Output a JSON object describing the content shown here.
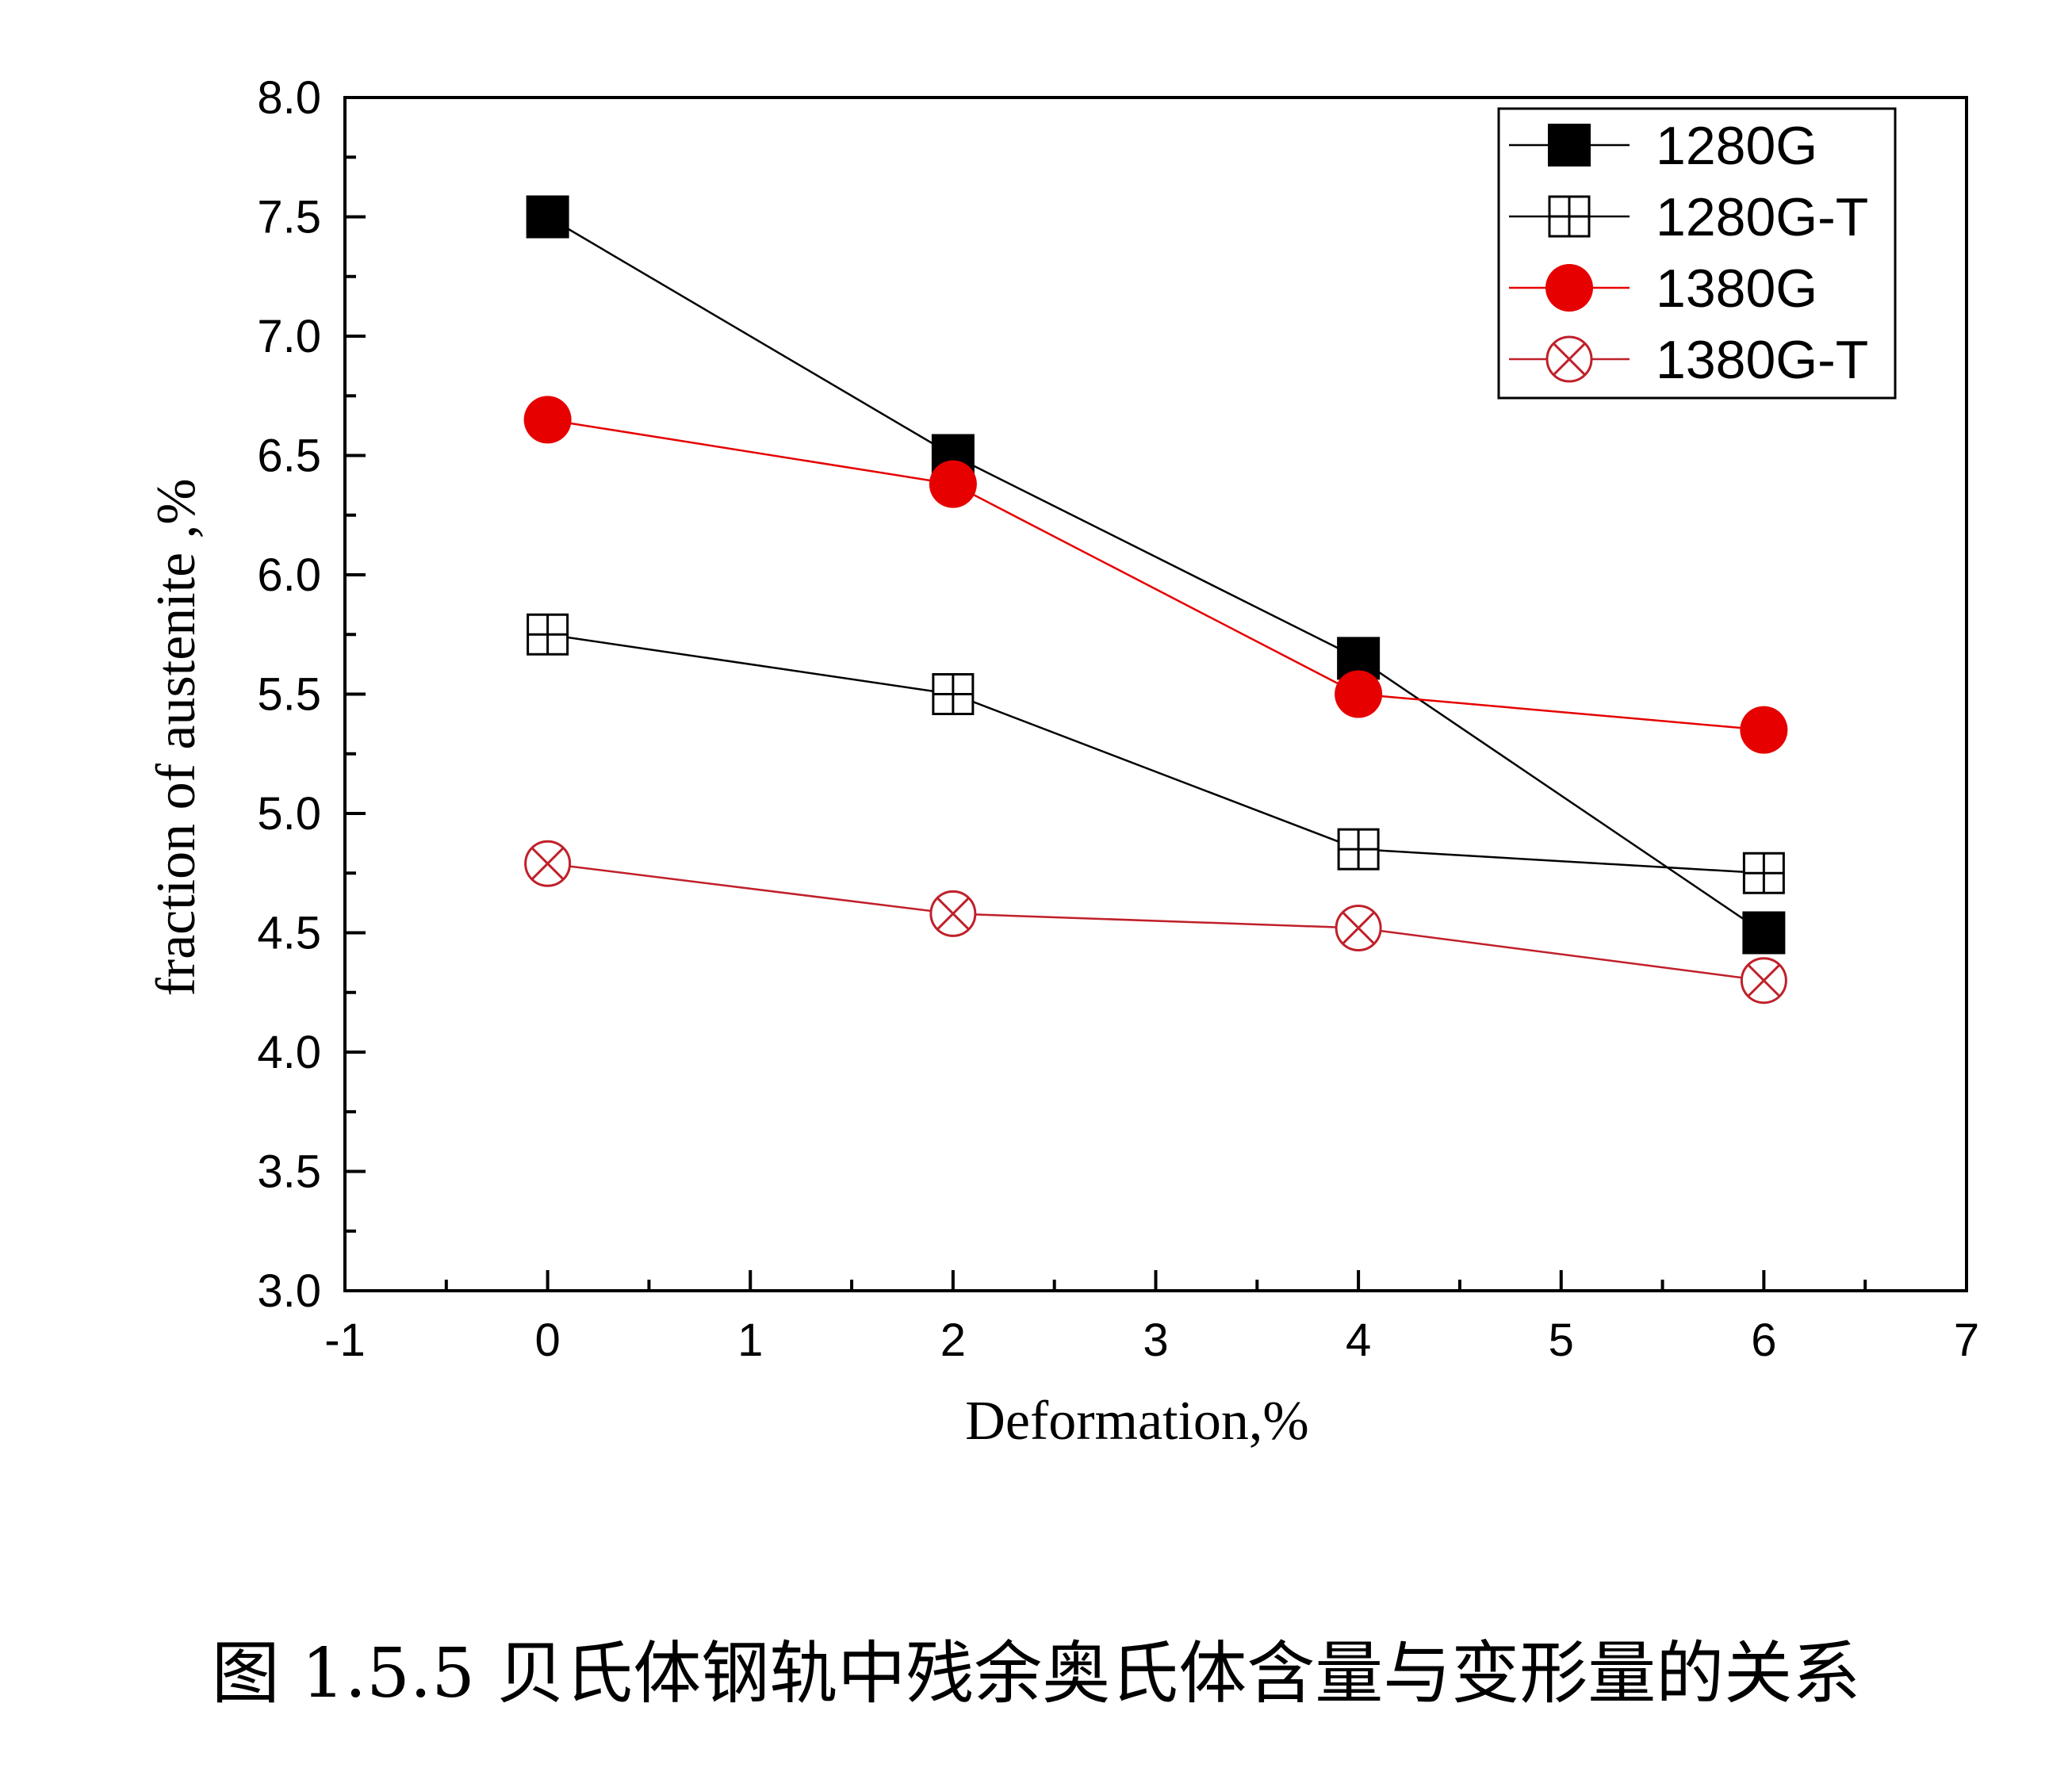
{
  "chart_data": {
    "type": "line",
    "title": "",
    "xlabel": "Deformation,%",
    "ylabel": "fraction of austenite ,%",
    "xlim": [
      -1,
      7
    ],
    "ylim": [
      3.0,
      8.0
    ],
    "x_ticks": [
      "-1",
      "0",
      "1",
      "2",
      "3",
      "4",
      "5",
      "6",
      "7"
    ],
    "x_tick_values": [
      -1,
      0,
      1,
      2,
      3,
      4,
      5,
      6,
      7
    ],
    "y_ticks": [
      "3.0",
      "3.5",
      "4.0",
      "4.5",
      "5.0",
      "5.5",
      "6.0",
      "6.5",
      "7.0",
      "7.5",
      "8.0"
    ],
    "y_tick_values": [
      3.0,
      3.5,
      4.0,
      4.5,
      5.0,
      5.5,
      6.0,
      6.5,
      7.0,
      7.5,
      8.0
    ],
    "x": [
      0,
      2,
      4,
      6
    ],
    "legend_position": "top-right",
    "grid": false,
    "series": [
      {
        "name": "1280G",
        "values": [
          7.5,
          6.5,
          5.65,
          4.5
        ],
        "color": "#000000",
        "marker": "filled-square"
      },
      {
        "name": "1280G-T",
        "values": [
          5.75,
          5.5,
          4.85,
          4.75
        ],
        "color": "#000000",
        "marker": "crossed-square"
      },
      {
        "name": "1380G",
        "values": [
          6.65,
          6.38,
          5.5,
          5.35
        ],
        "color": "#e60000",
        "marker": "filled-circle"
      },
      {
        "name": "1380G-T",
        "values": [
          4.79,
          4.58,
          4.52,
          4.3
        ],
        "color": "#c0202a",
        "marker": "x-circle"
      }
    ]
  },
  "caption": "图 1.5.5  贝氏体钢轨中残余奥氏体含量与变形量的关系"
}
